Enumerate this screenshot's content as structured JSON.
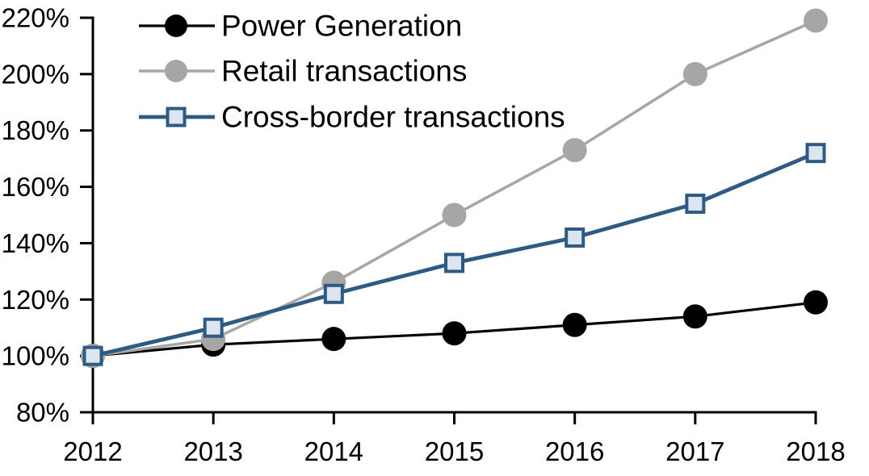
{
  "chart_data": {
    "type": "line",
    "title": "",
    "xlabel": "",
    "ylabel": "",
    "x_categories": [
      "2012",
      "2013",
      "2014",
      "2015",
      "2016",
      "2017",
      "2018"
    ],
    "series": [
      {
        "name": "Power Generation",
        "values": [
          100,
          104,
          106,
          108,
          111,
          114,
          119
        ],
        "color": "#000000",
        "marker": "circle",
        "marker_fill": "#000000"
      },
      {
        "name": "Retail transactions",
        "values": [
          100,
          106,
          126,
          150,
          173,
          200,
          219
        ],
        "color": "#a6a6a6",
        "marker": "circle",
        "marker_fill": "#a6a6a6"
      },
      {
        "name": "Cross-border transactions",
        "values": [
          100,
          110,
          122,
          133,
          142,
          154,
          172
        ],
        "color": "#2e5a84",
        "marker": "square",
        "marker_fill": "#dce6f1"
      }
    ],
    "ylim": [
      80,
      220
    ],
    "ytick_step": 20,
    "ytick_labels": [
      "80%",
      "100%",
      "120%",
      "140%",
      "160%",
      "180%",
      "200%",
      "220%"
    ],
    "grid": false,
    "legend_position": "top-left",
    "axis_color": "#000000",
    "background": "#ffffff"
  }
}
